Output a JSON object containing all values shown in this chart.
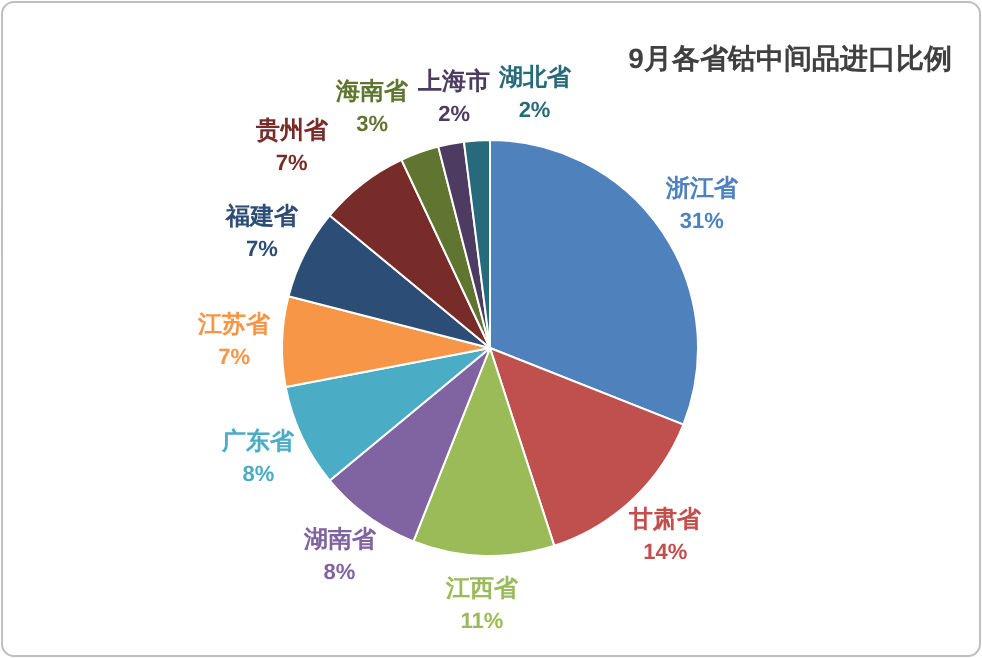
{
  "chart_data": {
    "type": "pie",
    "title": "9月各省钴中间品进口比例",
    "categories": [
      "浙江省",
      "甘肃省",
      "江西省",
      "湖南省",
      "广东省",
      "江苏省",
      "福建省",
      "贵州省",
      "海南省",
      "上海市",
      "湖北省"
    ],
    "values": [
      31,
      14,
      11,
      8,
      8,
      7,
      7,
      7,
      3,
      2,
      2
    ],
    "value_labels": [
      "31%",
      "14%",
      "11%",
      "8%",
      "8%",
      "7%",
      "7%",
      "7%",
      "3%",
      "2%",
      "2%"
    ],
    "colors": [
      "#4f81bd",
      "#c0504d",
      "#9bbb59",
      "#8064a2",
      "#4bacc6",
      "#f79646",
      "#2c4d75",
      "#772c2a",
      "#5f7530",
      "#4d3b62",
      "#276a7c"
    ]
  }
}
